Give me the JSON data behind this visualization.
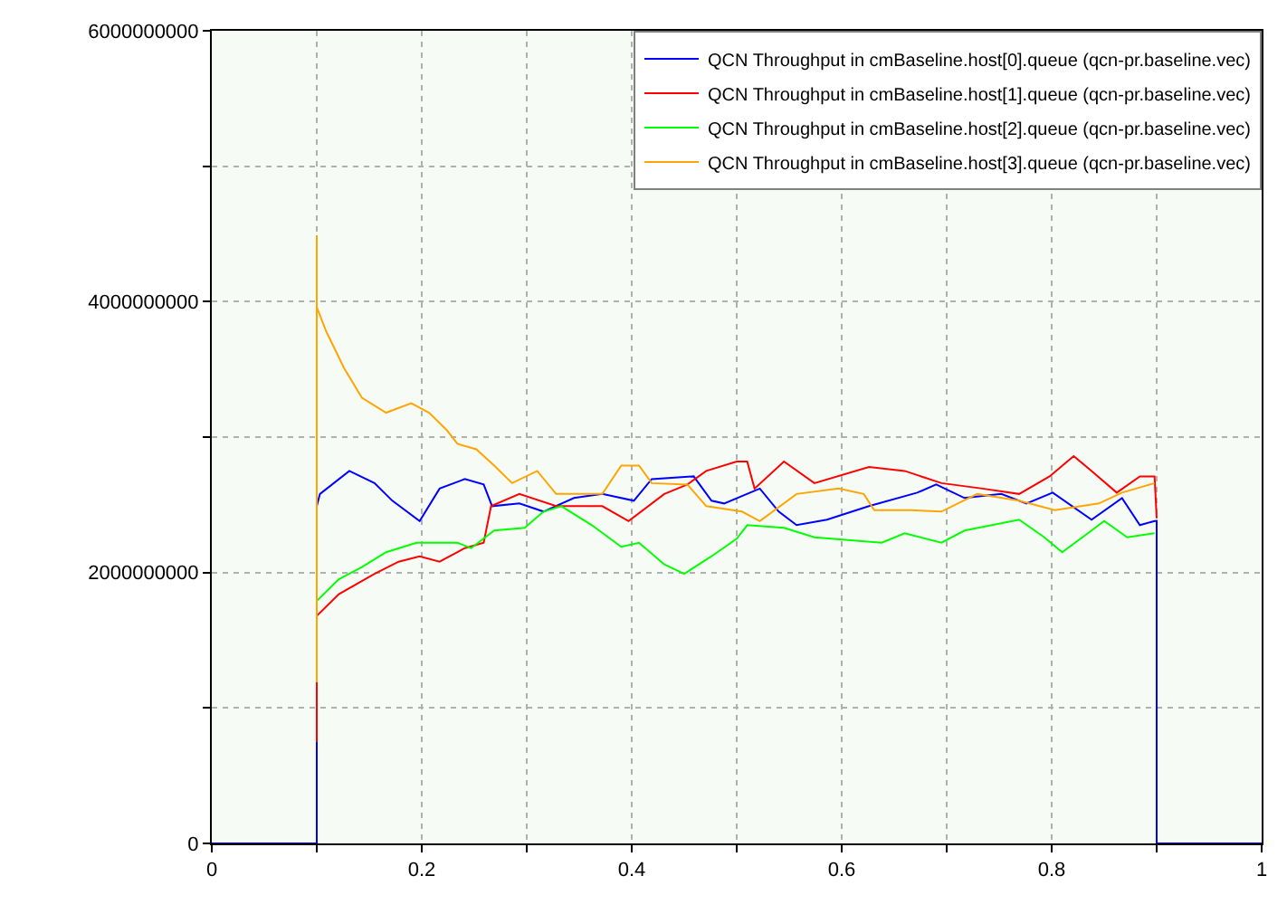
{
  "chart_data": {
    "type": "line",
    "xlim": [
      0,
      1
    ],
    "xticks": [
      0,
      {
        "value": 0.1,
        "label": null
      },
      0.2,
      {
        "value": 0.3,
        "label": null
      },
      0.4,
      {
        "value": 0.5,
        "label": null
      },
      0.6,
      {
        "value": 0.7,
        "label": null
      },
      0.8,
      {
        "value": 0.9,
        "label": null
      },
      1
    ],
    "ylim": [
      0,
      6000000000
    ],
    "yticks": [
      0,
      {
        "value": 1000000000,
        "label": null
      },
      2000000000,
      {
        "value": 3000000000,
        "label": null
      },
      4000000000,
      {
        "value": 5000000000,
        "label": null
      },
      6000000000
    ],
    "grid": true,
    "legend": "top right",
    "line_style": "solid",
    "series": [
      {
        "name": "QCN Throughput in cmBaseline.host[0].queue (qcn-pr.baseline.vec)",
        "color": "#0000ff",
        "x": [
          0,
          0.1,
          0.1,
          0.103,
          0.131,
          0.155,
          0.172,
          0.198,
          0.217,
          0.241,
          0.259,
          0.267,
          0.293,
          0.316,
          0.345,
          0.372,
          0.402,
          0.419,
          0.459,
          0.476,
          0.488,
          0.522,
          0.54,
          0.557,
          0.586,
          0.626,
          0.672,
          0.69,
          0.717,
          0.752,
          0.776,
          0.801,
          0.838,
          0.867,
          0.884,
          0.898,
          0.9,
          0.9,
          0.9,
          1
        ],
        "values": [
          0,
          0,
          2490000000,
          2580000000,
          2750000000,
          2660000000,
          2530000000,
          2380000000,
          2620000000,
          2690000000,
          2650000000,
          2490000000,
          2510000000,
          2450000000,
          2550000000,
          2580000000,
          2530000000,
          2690000000,
          2710000000,
          2530000000,
          2510000000,
          2620000000,
          2450000000,
          2350000000,
          2390000000,
          2490000000,
          2590000000,
          2650000000,
          2550000000,
          2580000000,
          2510000000,
          2590000000,
          2390000000,
          2550000000,
          2350000000,
          2380000000,
          2380000000,
          610000000,
          0,
          0
        ]
      },
      {
        "name": "QCN Throughput in cmBaseline.host[1].queue (qcn-pr.baseline.vec)",
        "color": "#ff0000",
        "x": [
          0.1,
          0.1,
          0.121,
          0.155,
          0.178,
          0.198,
          0.217,
          0.241,
          0.259,
          0.266,
          0.293,
          0.328,
          0.372,
          0.397,
          0.431,
          0.453,
          0.471,
          0.5,
          0.51,
          0.517,
          0.545,
          0.574,
          0.626,
          0.66,
          0.695,
          0.734,
          0.769,
          0.798,
          0.821,
          0.838,
          0.862,
          0.884,
          0.898,
          0.9
        ],
        "values": [
          750000000,
          1680000000,
          1840000000,
          1990000000,
          2080000000,
          2120000000,
          2080000000,
          2180000000,
          2220000000,
          2490000000,
          2580000000,
          2490000000,
          2490000000,
          2380000000,
          2580000000,
          2650000000,
          2750000000,
          2820000000,
          2820000000,
          2620000000,
          2820000000,
          2660000000,
          2780000000,
          2750000000,
          2660000000,
          2620000000,
          2580000000,
          2710000000,
          2860000000,
          2750000000,
          2590000000,
          2710000000,
          2710000000,
          2400000000
        ]
      },
      {
        "name": "QCN Throughput in cmBaseline.host[2].queue (qcn-pr.baseline.vec)",
        "color": "#00ff00",
        "x": [
          0.1,
          0.121,
          0.143,
          0.166,
          0.195,
          0.234,
          0.247,
          0.269,
          0.298,
          0.316,
          0.333,
          0.362,
          0.39,
          0.407,
          0.431,
          0.45,
          0.476,
          0.5,
          0.51,
          0.545,
          0.574,
          0.638,
          0.66,
          0.695,
          0.717,
          0.769,
          0.793,
          0.81,
          0.838,
          0.85,
          0.872,
          0.898
        ],
        "values": [
          1790000000,
          1950000000,
          2040000000,
          2150000000,
          2220000000,
          2220000000,
          2180000000,
          2310000000,
          2330000000,
          2450000000,
          2490000000,
          2350000000,
          2190000000,
          2220000000,
          2060000000,
          1990000000,
          2120000000,
          2250000000,
          2350000000,
          2330000000,
          2260000000,
          2220000000,
          2290000000,
          2220000000,
          2310000000,
          2390000000,
          2260000000,
          2150000000,
          2310000000,
          2380000000,
          2260000000,
          2290000000
        ]
      },
      {
        "name": "QCN Throughput in cmBaseline.host[3].queue (qcn-pr.baseline.vec)",
        "color": "#ffa500",
        "x": [
          0.1,
          0.1,
          0.1,
          0.109,
          0.126,
          0.143,
          0.166,
          0.19,
          0.207,
          0.224,
          0.234,
          0.252,
          0.269,
          0.286,
          0.31,
          0.328,
          0.35,
          0.372,
          0.39,
          0.407,
          0.419,
          0.453,
          0.471,
          0.505,
          0.522,
          0.557,
          0.597,
          0.621,
          0.631,
          0.666,
          0.695,
          0.729,
          0.769,
          0.803,
          0.845,
          0.867,
          0.898
        ],
        "values": [
          1190000000,
          4490000000,
          3960000000,
          3780000000,
          3510000000,
          3290000000,
          3180000000,
          3250000000,
          3180000000,
          3050000000,
          2950000000,
          2910000000,
          2790000000,
          2660000000,
          2750000000,
          2580000000,
          2580000000,
          2580000000,
          2790000000,
          2790000000,
          2660000000,
          2650000000,
          2490000000,
          2450000000,
          2380000000,
          2580000000,
          2620000000,
          2580000000,
          2460000000,
          2460000000,
          2450000000,
          2580000000,
          2530000000,
          2460000000,
          2510000000,
          2590000000,
          2660000000
        ]
      }
    ]
  }
}
